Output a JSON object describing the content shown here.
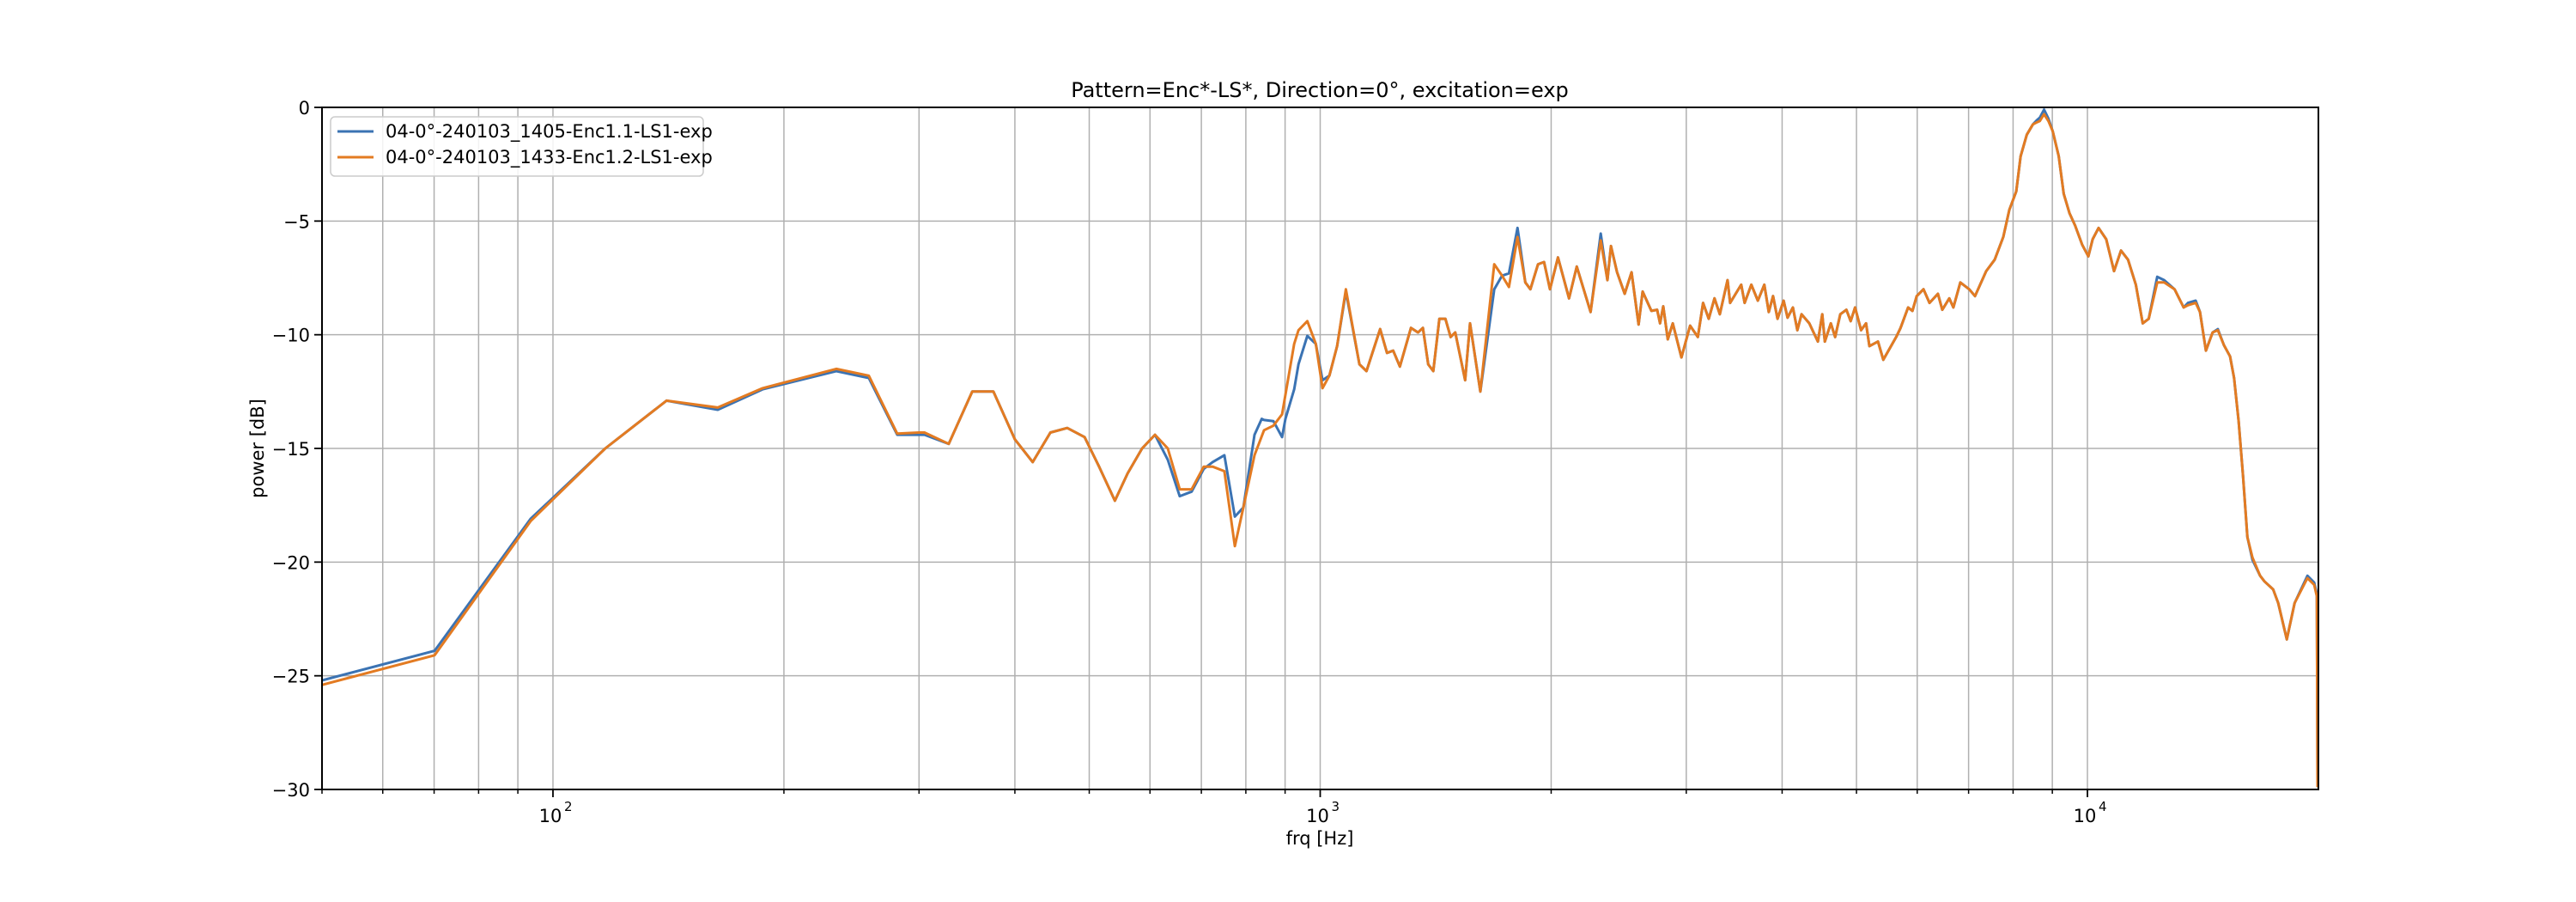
{
  "chart_data": {
    "type": "line",
    "title": "Pattern=Enc*-LS*, Direction=0°, excitation=exp",
    "xlabel": "frq [Hz]",
    "ylabel": "power [dB]",
    "xscale": "log",
    "xlim": [
      50,
      20000
    ],
    "ylim": [
      -30,
      0
    ],
    "grid": true,
    "legend_position": "upper left",
    "x_major_ticks": [
      {
        "value": 100,
        "base": "10",
        "exp": "2"
      },
      {
        "value": 1000,
        "base": "10",
        "exp": "3"
      },
      {
        "value": 10000,
        "base": "10",
        "exp": "4"
      }
    ],
    "x_minor_ticks": [
      50,
      60,
      70,
      80,
      90,
      200,
      300,
      400,
      500,
      600,
      700,
      800,
      900,
      2000,
      3000,
      4000,
      5000,
      6000,
      7000,
      8000,
      9000
    ],
    "y_ticks": [
      {
        "value": 0,
        "label": "0"
      },
      {
        "value": -5,
        "label": "−5"
      },
      {
        "value": -10,
        "label": "−10"
      },
      {
        "value": -15,
        "label": "−15"
      },
      {
        "value": -20,
        "label": "−20"
      },
      {
        "value": -25,
        "label": "−25"
      },
      {
        "value": -30,
        "label": "−30"
      }
    ],
    "series": [
      {
        "name": "04-0°-240103_1405-Enc1.1-LS1-exp",
        "color": "#3b73b3",
        "x": [
          50,
          70.1,
          93.5,
          117,
          140.6,
          164,
          187.6,
          234,
          258,
          281,
          300,
          305,
          328,
          352,
          375,
          400,
          422,
          445,
          468,
          493,
          515,
          540,
          561,
          586,
          609,
          633,
          656,
          680,
          705,
          724,
          750,
          774,
          794,
          821,
          839,
          845,
          869,
          892,
          901,
          925,
          937,
          962,
          987,
          1007,
          1028,
          1052,
          1080,
          1125,
          1149,
          1197,
          1222,
          1245,
          1270,
          1313,
          1341,
          1361,
          1383,
          1404,
          1430,
          1456,
          1479,
          1500,
          1545,
          1568,
          1617,
          1686,
          1726,
          1762,
          1808,
          1851,
          1879,
          1923,
          1958,
          1993,
          2041,
          2110,
          2160,
          2251,
          2321,
          2368,
          2393,
          2437,
          2494,
          2546,
          2600,
          2632,
          2702,
          2749,
          2773,
          2800,
          2838,
          2881,
          2957,
          3035,
          3106,
          3155,
          3209,
          3265,
          3318,
          3396,
          3422,
          3538,
          3574,
          3647,
          3719,
          3792,
          3843,
          3893,
          3945,
          4018,
          4066,
          4131,
          4187,
          4240,
          4340,
          4453,
          4512,
          4547,
          4630,
          4690,
          4763,
          4851,
          4914,
          4979,
          5069,
          5146,
          5198,
          5334,
          5420,
          5546,
          5633,
          5707,
          5838,
          5914,
          5991,
          6114,
          6225,
          6385,
          6469,
          6605,
          6687,
          6828,
          7013,
          7136,
          7380,
          7571,
          7767,
          7911,
          8077,
          8183,
          8335,
          8490,
          8600,
          8668,
          8780,
          8895,
          9010,
          9174,
          9313,
          9474,
          9637,
          9845,
          10027,
          10158,
          10341,
          10580,
          10830,
          11060,
          11295,
          11563,
          11804,
          12020,
          12330,
          12590,
          12990,
          13350,
          13520,
          13840,
          14020,
          14270,
          14560,
          14790,
          15060,
          15340,
          15530,
          15740,
          15950,
          16160,
          16410,
          16790,
          17010,
          17460,
          17730,
          18190,
          18620,
          19350,
          19750,
          19910,
          19950
        ],
        "y": [
          -25.2,
          -23.9,
          -18.1,
          -15.0,
          -12.9,
          -13.3,
          -12.4,
          -11.6,
          -11.9,
          -14.4,
          -14.4,
          -14.4,
          -14.8,
          -12.5,
          -12.5,
          -14.6,
          -15.6,
          -14.3,
          -14.1,
          -14.5,
          -15.8,
          -17.3,
          -16.1,
          -15.0,
          -14.4,
          -15.5,
          -17.1,
          -16.9,
          -15.9,
          -15.6,
          -15.3,
          -18.0,
          -17.6,
          -14.4,
          -13.7,
          -13.75,
          -13.8,
          -14.5,
          -13.7,
          -12.4,
          -11.3,
          -10.05,
          -10.4,
          -12.0,
          -11.8,
          -10.5,
          -8.1,
          -11.3,
          -11.6,
          -9.75,
          -10.8,
          -10.7,
          -11.4,
          -9.7,
          -9.9,
          -9.7,
          -11.3,
          -11.6,
          -9.3,
          -9.3,
          -10.1,
          -9.9,
          -12.0,
          -9.5,
          -12.5,
          -8.0,
          -7.4,
          -7.3,
          -5.3,
          -7.7,
          -8.0,
          -6.9,
          -6.8,
          -8.0,
          -6.6,
          -8.4,
          -7.0,
          -9.0,
          -5.55,
          -7.6,
          -6.1,
          -7.25,
          -8.2,
          -7.25,
          -9.55,
          -8.1,
          -8.95,
          -8.9,
          -9.5,
          -8.75,
          -10.2,
          -9.5,
          -11.0,
          -9.6,
          -10.1,
          -8.6,
          -9.3,
          -8.4,
          -9.1,
          -7.6,
          -8.6,
          -7.8,
          -8.6,
          -7.8,
          -8.5,
          -7.8,
          -9.0,
          -8.3,
          -9.3,
          -8.5,
          -9.25,
          -8.8,
          -9.8,
          -9.1,
          -9.5,
          -10.3,
          -9.1,
          -10.3,
          -9.5,
          -10.1,
          -9.1,
          -8.9,
          -9.4,
          -8.8,
          -9.8,
          -9.5,
          -10.5,
          -10.3,
          -11.1,
          -10.5,
          -10.1,
          -9.7,
          -8.8,
          -8.95,
          -8.3,
          -8.0,
          -8.6,
          -8.2,
          -8.9,
          -8.4,
          -8.8,
          -7.7,
          -8.0,
          -8.3,
          -7.2,
          -6.7,
          -5.7,
          -4.5,
          -3.7,
          -2.15,
          -1.2,
          -0.75,
          -0.55,
          -0.45,
          -0.1,
          -0.5,
          -1.05,
          -2.15,
          -3.8,
          -4.65,
          -5.2,
          -6.05,
          -6.55,
          -5.8,
          -5.3,
          -5.8,
          -7.2,
          -6.3,
          -6.7,
          -7.8,
          -9.5,
          -9.3,
          -7.45,
          -7.6,
          -8.0,
          -8.8,
          -8.6,
          -8.5,
          -9.0,
          -10.7,
          -9.9,
          -9.75,
          -10.45,
          -10.95,
          -11.9,
          -13.8,
          -16.2,
          -18.9,
          -19.9,
          -20.6,
          -20.85,
          -21.2,
          -21.8,
          -23.4,
          -21.8,
          -20.6,
          -20.9,
          -21.4,
          -29.9
        ]
      },
      {
        "name": "04-0°-240103_1433-Enc1.2-LS1-exp",
        "color": "#e37b22",
        "x": [
          50,
          70.1,
          93.5,
          117,
          140.6,
          164,
          187.6,
          234,
          258,
          281,
          300,
          305,
          328,
          352,
          375,
          400,
          422,
          445,
          468,
          493,
          515,
          540,
          561,
          586,
          609,
          633,
          656,
          680,
          705,
          724,
          750,
          774,
          794,
          821,
          845,
          869,
          892,
          925,
          937,
          962,
          987,
          1007,
          1028,
          1052,
          1080,
          1125,
          1149,
          1197,
          1222,
          1245,
          1270,
          1313,
          1341,
          1361,
          1383,
          1404,
          1430,
          1456,
          1479,
          1500,
          1545,
          1568,
          1617,
          1686,
          1726,
          1762,
          1808,
          1851,
          1879,
          1923,
          1958,
          1993,
          2041,
          2110,
          2160,
          2251,
          2321,
          2368,
          2393,
          2437,
          2494,
          2546,
          2600,
          2632,
          2702,
          2749,
          2773,
          2800,
          2838,
          2881,
          2957,
          3035,
          3106,
          3155,
          3209,
          3265,
          3318,
          3396,
          3422,
          3538,
          3574,
          3647,
          3719,
          3792,
          3843,
          3893,
          3945,
          4018,
          4066,
          4131,
          4187,
          4240,
          4340,
          4453,
          4512,
          4547,
          4630,
          4690,
          4763,
          4851,
          4914,
          4979,
          5069,
          5146,
          5198,
          5334,
          5420,
          5546,
          5633,
          5707,
          5838,
          5914,
          5991,
          6114,
          6225,
          6385,
          6469,
          6605,
          6687,
          6828,
          7013,
          7136,
          7380,
          7571,
          7767,
          7911,
          8077,
          8183,
          8335,
          8490,
          8600,
          8668,
          8780,
          8895,
          9010,
          9174,
          9313,
          9474,
          9637,
          9845,
          10027,
          10158,
          10341,
          10580,
          10830,
          11060,
          11295,
          11563,
          11804,
          12020,
          12330,
          12590,
          12990,
          13350,
          13520,
          13840,
          14020,
          14270,
          14560,
          14790,
          15060,
          15340,
          15530,
          15740,
          15950,
          16160,
          16410,
          16790,
          17010,
          17460,
          17730,
          18190,
          18620,
          19350,
          19750,
          19910,
          19950
        ],
        "y": [
          -25.4,
          -24.1,
          -18.2,
          -15.0,
          -12.9,
          -13.2,
          -12.35,
          -11.5,
          -11.8,
          -14.35,
          -14.3,
          -14.3,
          -14.8,
          -12.5,
          -12.5,
          -14.6,
          -15.6,
          -14.3,
          -14.1,
          -14.5,
          -15.8,
          -17.3,
          -16.1,
          -15.0,
          -14.4,
          -15.0,
          -16.8,
          -16.8,
          -15.8,
          -15.8,
          -16.0,
          -19.3,
          -17.6,
          -15.3,
          -14.2,
          -14.0,
          -13.5,
          -10.4,
          -9.8,
          -9.4,
          -10.4,
          -12.35,
          -11.8,
          -10.5,
          -8.0,
          -11.3,
          -11.6,
          -9.75,
          -10.8,
          -10.7,
          -11.4,
          -9.7,
          -9.9,
          -9.7,
          -11.3,
          -11.6,
          -9.3,
          -9.3,
          -10.1,
          -9.9,
          -12.0,
          -9.5,
          -12.5,
          -6.9,
          -7.4,
          -7.9,
          -5.7,
          -7.7,
          -8.0,
          -6.9,
          -6.8,
          -8.0,
          -6.6,
          -8.4,
          -7.0,
          -9.0,
          -5.85,
          -7.6,
          -6.1,
          -7.25,
          -8.2,
          -7.25,
          -9.55,
          -8.1,
          -8.95,
          -8.9,
          -9.5,
          -8.75,
          -10.2,
          -9.5,
          -11.0,
          -9.6,
          -10.1,
          -8.6,
          -9.3,
          -8.4,
          -9.1,
          -7.6,
          -8.6,
          -7.8,
          -8.6,
          -7.8,
          -8.5,
          -7.8,
          -9.0,
          -8.3,
          -9.3,
          -8.5,
          -9.25,
          -8.8,
          -9.8,
          -9.1,
          -9.5,
          -10.3,
          -9.1,
          -10.3,
          -9.5,
          -10.1,
          -9.1,
          -8.9,
          -9.4,
          -8.8,
          -9.8,
          -9.5,
          -10.5,
          -10.3,
          -11.1,
          -10.5,
          -10.1,
          -9.7,
          -8.8,
          -8.95,
          -8.3,
          -8.0,
          -8.6,
          -8.2,
          -8.9,
          -8.4,
          -8.8,
          -7.7,
          -8.0,
          -8.3,
          -7.2,
          -6.7,
          -5.7,
          -4.5,
          -3.7,
          -2.15,
          -1.2,
          -0.75,
          -0.65,
          -0.6,
          -0.3,
          -0.6,
          -1.05,
          -2.15,
          -3.8,
          -4.65,
          -5.2,
          -6.05,
          -6.55,
          -5.8,
          -5.3,
          -5.8,
          -7.2,
          -6.3,
          -6.7,
          -7.8,
          -9.5,
          -9.3,
          -7.7,
          -7.7,
          -8.0,
          -8.8,
          -8.7,
          -8.6,
          -9.0,
          -10.7,
          -9.9,
          -9.8,
          -10.45,
          -10.95,
          -11.9,
          -13.8,
          -16.2,
          -18.9,
          -19.8,
          -20.6,
          -20.85,
          -21.2,
          -21.8,
          -23.4,
          -21.8,
          -20.7,
          -21.0,
          -21.5,
          -29.9
        ]
      }
    ]
  }
}
